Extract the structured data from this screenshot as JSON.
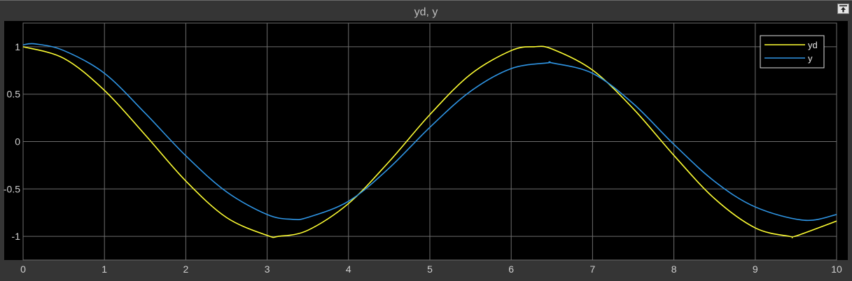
{
  "window": {
    "title": "yd, y"
  },
  "chart_data": {
    "type": "line",
    "title": "yd, y",
    "xlabel": "",
    "ylabel": "",
    "xlim": [
      0,
      10
    ],
    "ylim": [
      -1.25,
      1.25
    ],
    "x_ticks": [
      0,
      1,
      2,
      3,
      4,
      5,
      6,
      7,
      8,
      9,
      10
    ],
    "x_tick_labels": [
      "0",
      "1",
      "2",
      "3",
      "4",
      "5",
      "6",
      "7",
      "8",
      "9",
      "10"
    ],
    "y_ticks": [
      1,
      0.5,
      0,
      -0.5,
      -1
    ],
    "y_tick_labels": [
      "1",
      "0.5",
      "0",
      "-0.5",
      "-1"
    ],
    "grid": true,
    "background": "#000000",
    "legend_position": "top-right",
    "series": [
      {
        "name": "yd",
        "color": "#ffff33",
        "x": [
          0,
          0.5,
          1,
          1.5,
          2,
          2.5,
          3,
          3.14,
          3.5,
          4,
          4.5,
          5,
          5.5,
          6,
          6.28,
          6.5,
          7,
          7.5,
          8,
          8.5,
          9,
          9.42,
          9.5,
          10
        ],
        "y": [
          1.0,
          0.878,
          0.54,
          0.071,
          -0.416,
          -0.801,
          -0.99,
          -1.0,
          -0.936,
          -0.654,
          -0.211,
          0.284,
          0.709,
          0.96,
          1.0,
          0.977,
          0.754,
          0.347,
          -0.146,
          -0.602,
          -0.911,
          -1.0,
          -0.997,
          -0.839
        ]
      },
      {
        "name": "y",
        "color": "#2f96e6",
        "x": [
          0,
          0.15,
          0.5,
          1,
          1.5,
          2,
          2.5,
          3,
          3.3,
          3.5,
          4,
          4.5,
          5,
          5.5,
          6,
          6.45,
          6.5,
          7,
          7.5,
          8,
          8.5,
          9,
          9.6,
          10
        ],
        "y": [
          1.02,
          1.03,
          0.96,
          0.72,
          0.3,
          -0.15,
          -0.53,
          -0.77,
          -0.82,
          -0.8,
          -0.63,
          -0.28,
          0.15,
          0.53,
          0.77,
          0.83,
          0.83,
          0.72,
          0.4,
          -0.03,
          -0.42,
          -0.69,
          -0.83,
          -0.77
        ]
      }
    ]
  },
  "legend": {
    "items": [
      {
        "label": "yd",
        "color": "#ffff33"
      },
      {
        "label": "y",
        "color": "#2f96e6"
      }
    ]
  },
  "colors": {
    "frame": "#353535",
    "grid": "#6e6e6e",
    "axis_text": "#d0d0d0",
    "title_text": "#bdbdbd"
  }
}
